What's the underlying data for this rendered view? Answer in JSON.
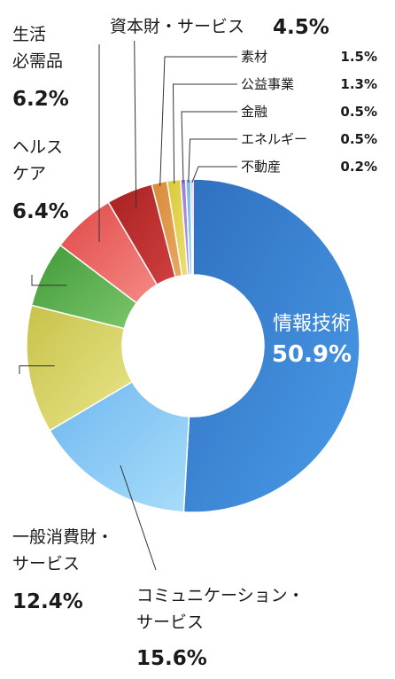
{
  "chart_data": {
    "type": "donut",
    "title": "",
    "unit": "%",
    "categories": [
      "情報技術",
      "コミュニケーション・サービス",
      "一般消費財・サービス",
      "ヘルスケア",
      "生活必需品",
      "資本財・サービス",
      "素材",
      "公益事業",
      "金融",
      "エネルギー",
      "不動産"
    ],
    "values": [
      50.9,
      15.6,
      12.4,
      6.4,
      6.2,
      4.5,
      1.5,
      1.3,
      0.5,
      0.5,
      0.2
    ],
    "slices": [
      {
        "label": "情報技術",
        "value": 50.9,
        "value_text": "50.9%",
        "color": "#2f6fc0",
        "color_light": "#4a9ce8"
      },
      {
        "label": "コミュニケーション・サービス",
        "lines": [
          "コミュニケーション・",
          "サービス"
        ],
        "value": 15.6,
        "value_text": "15.6%",
        "color": "#6fb8f0",
        "color_light": "#a8dcfa"
      },
      {
        "label": "一般消費財・サービス",
        "lines": [
          "一般消費財・",
          "サービス"
        ],
        "value": 12.4,
        "value_text": "12.4%",
        "color": "#c8c24a",
        "color_light": "#e8e68a"
      },
      {
        "label": "ヘルスケア",
        "lines": [
          "ヘルス",
          "ケア"
        ],
        "value": 6.4,
        "value_text": "6.4%",
        "color": "#3f9a3a",
        "color_light": "#7cc66a"
      },
      {
        "label": "生活必需品",
        "lines": [
          "生活",
          "必需品"
        ],
        "value": 6.2,
        "value_text": "6.2%",
        "color": "#e04848",
        "color_light": "#f58a84"
      },
      {
        "label": "資本財・サービス",
        "value": 4.5,
        "value_text": "4.5%",
        "color": "#a82020",
        "color_light": "#d04040"
      },
      {
        "label": "素材",
        "value": 1.5,
        "value_text": "1.5%",
        "color": "#d88a3a",
        "color_light": "#e8a860"
      },
      {
        "label": "公益事業",
        "value": 1.3,
        "value_text": "1.3%",
        "color": "#d8c838",
        "color_light": "#ece070"
      },
      {
        "label": "金融",
        "value": 0.5,
        "value_text": "0.5%",
        "color": "#9a78d8",
        "color_light": "#b89ae8"
      },
      {
        "label": "エネルギー",
        "value": 0.5,
        "value_text": "0.5%",
        "color": "#6fb8ea",
        "color_light": "#9ad0f2"
      },
      {
        "label": "不動産",
        "value": 0.2,
        "value_text": "0.2%",
        "color": "#e878a8",
        "color_light": "#f0a0c0"
      }
    ],
    "legend": "labels with leader lines around the chart"
  }
}
